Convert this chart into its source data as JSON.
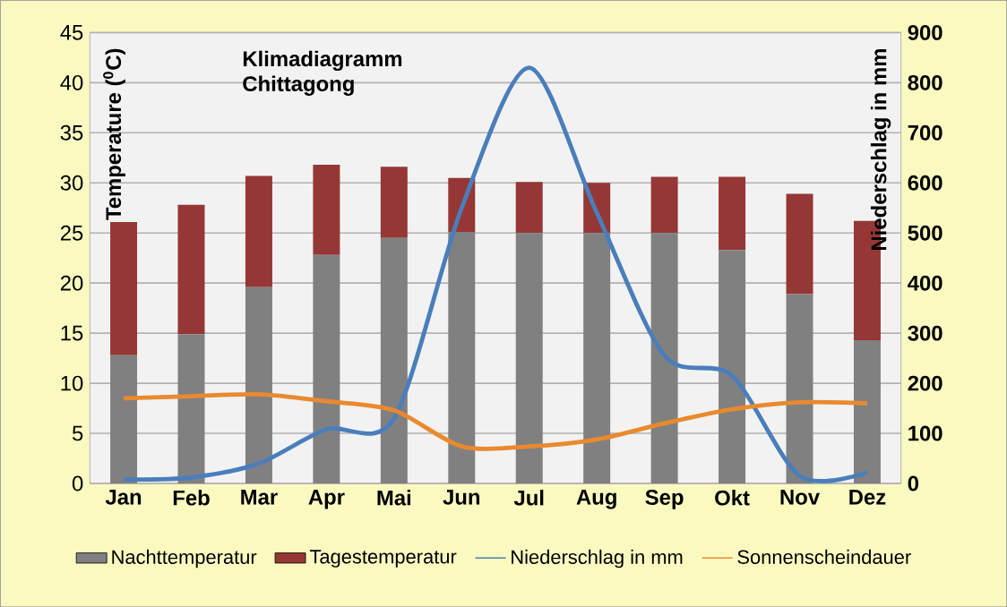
{
  "chart_data": {
    "type": "bar",
    "title": "Klimadiagramm Chittagong",
    "ylabel": "Temperature ($^{0}$C)",
    "y2label": "Niederschlag in mm",
    "categories": [
      "Jan",
      "Feb",
      "Mar",
      "Apr",
      "Mai",
      "Jun",
      "Jul",
      "Aug",
      "Sep",
      "Okt",
      "Nov",
      "Dez"
    ],
    "stacked": true,
    "grid": "y",
    "legend": "bottom",
    "ylim": [
      0,
      45
    ],
    "yticks": [
      0,
      5,
      10,
      15,
      20,
      25,
      30,
      35,
      40,
      45
    ],
    "y2lim": [
      0,
      900
    ],
    "y2ticks": [
      0,
      100,
      200,
      300,
      400,
      500,
      600,
      700,
      800,
      900
    ],
    "series": [
      {
        "name": "Nachttemperatur",
        "color": "#808080",
        "values": [
          12.8,
          14.9,
          19.6,
          22.8,
          24.5,
          25.1,
          25.0,
          25.0,
          25.0,
          23.3,
          18.9,
          14.3
        ]
      },
      {
        "name": "Tagestemperatur",
        "color": "#953735",
        "values": [
          13.3,
          12.9,
          11.1,
          9.0,
          7.1,
          5.4,
          5.1,
          5.0,
          5.6,
          7.3,
          10.0,
          11.9
        ]
      },
      {
        "name": "Niederschlag in mm",
        "type": "line",
        "axis": "y2",
        "color": "#4a7ebb",
        "values": [
          8,
          12,
          40,
          108,
          130,
          550,
          830,
          540,
          255,
          215,
          15,
          22
        ]
      },
      {
        "name": "Sonnenscheindauer",
        "type": "line",
        "color": "#e98a2e",
        "values": [
          8.5,
          8.7,
          8.9,
          8.2,
          7.3,
          3.7,
          3.7,
          4.4,
          6.0,
          7.4,
          8.1,
          8.0
        ]
      }
    ]
  }
}
